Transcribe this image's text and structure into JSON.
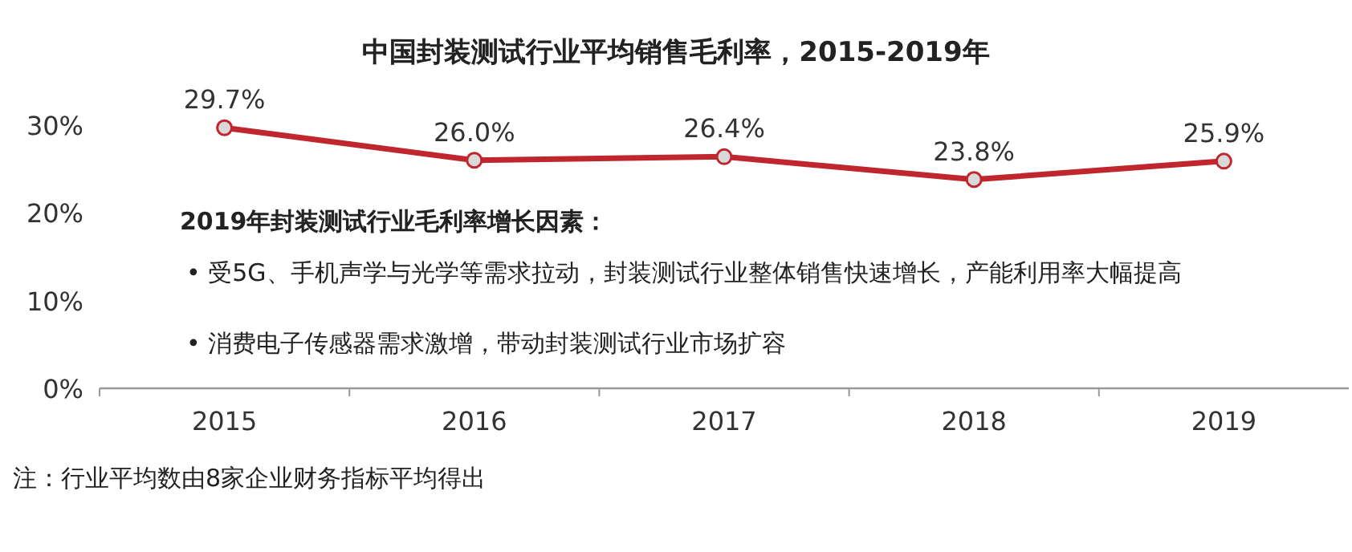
{
  "chart_data": {
    "type": "line",
    "title": "中国封装测试行业平均销售毛利率，2015-2019年",
    "categories": [
      "2015",
      "2016",
      "2017",
      "2018",
      "2019"
    ],
    "series": [
      {
        "color": "#c0262d",
        "values": [
          29.7,
          26.0,
          26.4,
          23.8,
          25.9
        ],
        "value_labels": [
          "29.7%",
          "26.0%",
          "26.4%",
          "23.8%",
          "25.9%"
        ]
      }
    ],
    "ylim": [
      0,
      30
    ],
    "yticks": [
      {
        "value": 0,
        "label": "0%"
      },
      {
        "value": 10,
        "label": "10%"
      },
      {
        "value": 20,
        "label": "20%"
      },
      {
        "value": 30,
        "label": "30%"
      }
    ],
    "grid": false,
    "marker": "circle",
    "line_style": "solid",
    "annotations": [
      "2019年封装测试行业毛利率增长因素：",
      "• 受5G、手机声学与光学等需求拉动，封装测试行业整体销售快速增长，产能利用率大幅提高",
      "• 消费电子传感器需求激增，带动封装测试行业市场扩容",
      "注：行业平均数由8家企业财务指标平均得出"
    ]
  }
}
